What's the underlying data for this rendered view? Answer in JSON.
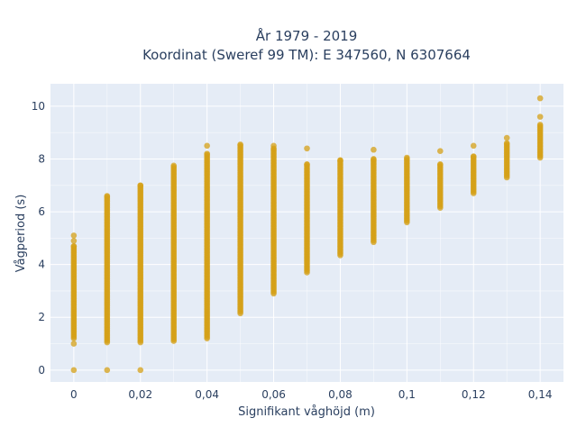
{
  "chart_data": {
    "type": "scatter",
    "title": {
      "line1": "År 1979 - 2019",
      "line2": "Koordinat (Sweref 99 TM): E 347560, N 6307664"
    },
    "xlabel": "Signifikant våghöjd (m)",
    "ylabel": "Vågperiod (s)",
    "xlim": [
      -0.007,
      0.147
    ],
    "ylim": [
      -0.45,
      10.85
    ],
    "x_ticks": [
      0,
      0.02,
      0.04,
      0.06,
      0.08,
      0.1,
      0.12,
      0.14
    ],
    "x_tick_labels": [
      "0",
      "0,02",
      "0,04",
      "0,06",
      "0,08",
      "0,1",
      "0,12",
      "0,14"
    ],
    "y_ticks": [
      0,
      2,
      4,
      6,
      8,
      10
    ],
    "y_tick_labels": [
      "0",
      "2",
      "4",
      "6",
      "8",
      "10"
    ],
    "grid": true,
    "colors": {
      "marker": "#d4a017",
      "plot_bg": "#e5ecf6",
      "grid": "#ffffff"
    },
    "columns": [
      {
        "x": 0,
        "ymin": 1.2,
        "ymax": 4.7,
        "extra": [
          0,
          5.1,
          4.9,
          1.0
        ]
      },
      {
        "x": 0.01,
        "ymin": 1.05,
        "ymax": 6.6,
        "extra": [
          0
        ]
      },
      {
        "x": 0.02,
        "ymin": 1.05,
        "ymax": 7.0,
        "extra": [
          0
        ]
      },
      {
        "x": 0.03,
        "ymin": 1.1,
        "ymax": 7.75,
        "extra": []
      },
      {
        "x": 0.04,
        "ymin": 1.2,
        "ymax": 8.2,
        "extra": [
          8.5
        ]
      },
      {
        "x": 0.05,
        "ymin": 2.15,
        "ymax": 8.55,
        "extra": []
      },
      {
        "x": 0.06,
        "ymin": 2.9,
        "ymax": 8.4,
        "extra": [
          8.5
        ]
      },
      {
        "x": 0.07,
        "ymin": 3.7,
        "ymax": 7.8,
        "extra": [
          8.4
        ]
      },
      {
        "x": 0.08,
        "ymin": 4.35,
        "ymax": 7.95,
        "extra": []
      },
      {
        "x": 0.09,
        "ymin": 4.85,
        "ymax": 8.0,
        "extra": [
          8.35
        ]
      },
      {
        "x": 0.1,
        "ymin": 5.6,
        "ymax": 8.05,
        "extra": []
      },
      {
        "x": 0.11,
        "ymin": 6.15,
        "ymax": 7.8,
        "extra": [
          8.3
        ]
      },
      {
        "x": 0.12,
        "ymin": 6.7,
        "ymax": 8.1,
        "extra": [
          8.5
        ]
      },
      {
        "x": 0.13,
        "ymin": 7.3,
        "ymax": 8.6,
        "extra": [
          8.8
        ]
      },
      {
        "x": 0.14,
        "ymin": 8.05,
        "ymax": 9.3,
        "extra": [
          9.6,
          10.3
        ]
      }
    ]
  }
}
